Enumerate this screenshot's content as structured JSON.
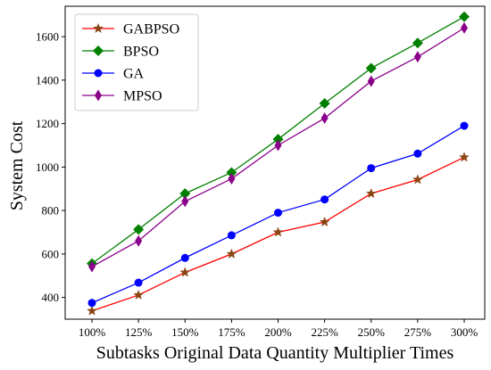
{
  "chart_data": {
    "type": "line",
    "xlabel": "Subtasks Original Data Quantity Multiplier Times",
    "ylabel": "System Cost",
    "categories": [
      "100%",
      "125%",
      "150%",
      "175%",
      "200%",
      "225%",
      "250%",
      "275%",
      "300%"
    ],
    "yticks": [
      "400",
      "600",
      "800",
      "1000",
      "1200",
      "1400",
      "1600"
    ],
    "ylim": [
      300,
      1740
    ],
    "grid": false,
    "legend_position": "top-left",
    "series": [
      {
        "name": "GABPSO",
        "color": "#ff0000",
        "marker_color": "#8b4513",
        "marker": "star",
        "values": [
          338,
          411,
          515,
          600,
          700,
          747,
          878,
          942,
          1045
        ]
      },
      {
        "name": "BPSO",
        "color": "#008000",
        "marker_color": "#008000",
        "marker": "diamond",
        "values": [
          556,
          713,
          878,
          975,
          1128,
          1293,
          1455,
          1571,
          1692
        ]
      },
      {
        "name": "GA",
        "color": "#0000ff",
        "marker_color": "#0000ff",
        "marker": "circle",
        "values": [
          375,
          468,
          582,
          686,
          790,
          851,
          995,
          1062,
          1190
        ]
      },
      {
        "name": "MPSO",
        "color": "#8b008b",
        "marker_color": "#8b008b",
        "marker": "thin-diamond",
        "values": [
          542,
          660,
          842,
          946,
          1100,
          1225,
          1395,
          1507,
          1640
        ]
      }
    ]
  }
}
